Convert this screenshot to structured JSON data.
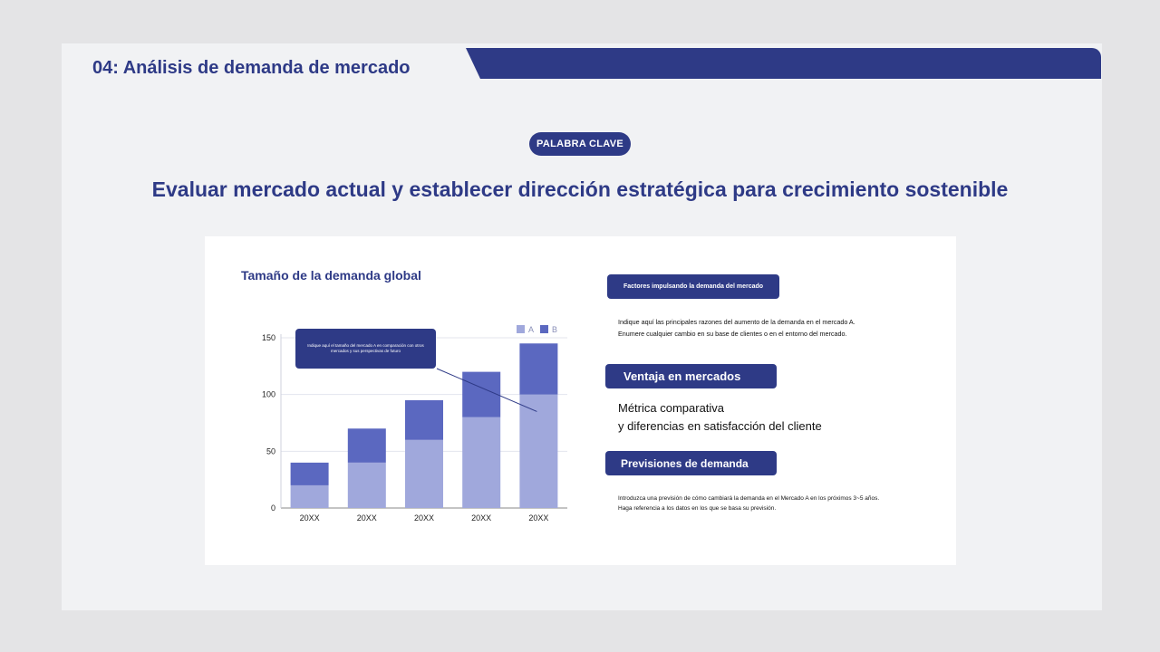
{
  "slide": {
    "title": "04: Análisis de demanda de mercado",
    "keyword_label": "PALABRA CLAVE",
    "headline": "Evaluar mercado actual y establecer dirección estratégica para crecimiento sostenible"
  },
  "chart_panel": {
    "title": "Tamaño de la demanda global",
    "callout": "Indique aquí el tamaño del mercado A en comparación con otros mercados y sus perspectivas de futuro"
  },
  "chart_data": {
    "type": "bar",
    "stacked": true,
    "title": "Tamaño de la demanda global",
    "categories": [
      "20XX",
      "20XX",
      "20XX",
      "20XX",
      "20XX"
    ],
    "series": [
      {
        "name": "A",
        "values": [
          20,
          40,
          60,
          80,
          100
        ],
        "color": "#a0a8dc"
      },
      {
        "name": "B",
        "values": [
          20,
          30,
          35,
          40,
          45
        ],
        "color": "#5b68c0"
      }
    ],
    "yticks": [
      0,
      50,
      100,
      150
    ],
    "ylim": [
      0,
      150
    ],
    "grid": true,
    "legend_position": "top-right"
  },
  "sections": [
    {
      "label": "Factores impulsando la demanda del mercado",
      "text": "Indique aquí las principales razones del aumento de la demanda en el mercado A.\n Enumere cualquier cambio en su base de clientes o en el entorno del mercado."
    },
    {
      "label": "Ventaja en mercados",
      "text": "Métrica comparativa\n y diferencias en satisfacción del cliente"
    },
    {
      "label": "Previsiones de demanda",
      "text": "Introduzca una previsión de cómo cambiará la demanda en el Mercado A en los próximos 3~5 años.\n Haga referencia a los datos en los que se basa su previsión."
    }
  ],
  "colors": {
    "primary": "#2e3a86",
    "series_a": "#a0a8dc",
    "series_b": "#5b68c0",
    "slide_bg": "#f1f2f4",
    "card_bg": "#ffffff"
  }
}
